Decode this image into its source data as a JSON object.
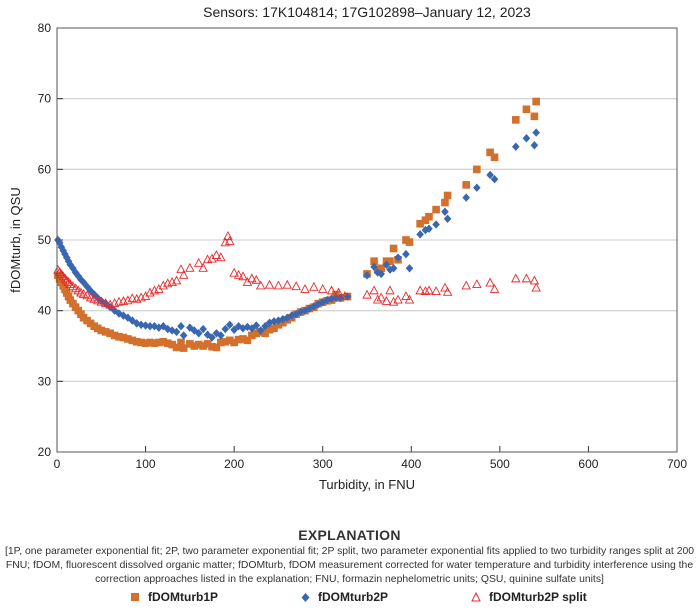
{
  "chart_data": {
    "type": "scatter",
    "title": "Sensors: 17K104814; 17G102898–January 12, 2023",
    "xlabel": "Turbidity, in FNU",
    "ylabel": "fDOMturb, in QSU",
    "xlim": [
      0,
      700
    ],
    "ylim": [
      20,
      80
    ],
    "xticks": [
      "0",
      "100",
      "200",
      "300",
      "400",
      "500",
      "600",
      "700"
    ],
    "yticks": [
      "20",
      "30",
      "40",
      "50",
      "60",
      "70",
      "80"
    ],
    "grid": "horizontal",
    "legend_position": "bottom",
    "series": [
      {
        "name": "fDOMturb1P",
        "marker": "square",
        "color": "#d2702c",
        "points": [
          [
            1,
            45
          ],
          [
            3,
            44.5
          ],
          [
            5,
            44
          ],
          [
            7,
            43.5
          ],
          [
            9,
            43
          ],
          [
            11,
            42.5
          ],
          [
            13,
            42
          ],
          [
            15,
            41.5
          ],
          [
            18,
            41
          ],
          [
            21,
            40.5
          ],
          [
            24,
            40
          ],
          [
            27,
            39.5
          ],
          [
            30,
            39
          ],
          [
            34,
            38.6
          ],
          [
            38,
            38.2
          ],
          [
            42,
            37.8
          ],
          [
            46,
            37.5
          ],
          [
            50,
            37.2
          ],
          [
            55,
            37
          ],
          [
            60,
            36.8
          ],
          [
            65,
            36.5
          ],
          [
            70,
            36.3
          ],
          [
            75,
            36.2
          ],
          [
            80,
            36
          ],
          [
            85,
            35.8
          ],
          [
            90,
            35.6
          ],
          [
            95,
            35.5
          ],
          [
            100,
            35.4
          ],
          [
            105,
            35.5
          ],
          [
            110,
            35.4
          ],
          [
            115,
            35.5
          ],
          [
            120,
            35.6
          ],
          [
            125,
            35.4
          ],
          [
            130,
            35.2
          ],
          [
            135,
            34.8
          ],
          [
            140,
            35.5
          ],
          [
            143,
            34.7
          ],
          [
            150,
            35.3
          ],
          [
            155,
            35
          ],
          [
            160,
            35.2
          ],
          [
            165,
            35
          ],
          [
            170,
            35.3
          ],
          [
            175,
            34.9
          ],
          [
            180,
            34.8
          ],
          [
            185,
            35.5
          ],
          [
            190,
            35.6
          ],
          [
            195,
            35.8
          ],
          [
            200,
            35.5
          ],
          [
            205,
            35.9
          ],
          [
            210,
            36
          ],
          [
            215,
            35.8
          ],
          [
            220,
            36.5
          ],
          [
            225,
            36.8
          ],
          [
            230,
            37
          ],
          [
            235,
            36.8
          ],
          [
            240,
            37.3
          ],
          [
            245,
            37.5
          ],
          [
            250,
            38
          ],
          [
            255,
            38.3
          ],
          [
            260,
            38.7
          ],
          [
            265,
            39
          ],
          [
            270,
            39.5
          ],
          [
            275,
            39.8
          ],
          [
            280,
            40
          ],
          [
            285,
            40.3
          ],
          [
            290,
            40.5
          ],
          [
            295,
            41
          ],
          [
            300,
            41.2
          ],
          [
            305,
            41.4
          ],
          [
            310,
            41.5
          ],
          [
            315,
            42.3
          ],
          [
            320,
            41.8
          ],
          [
            328,
            42
          ],
          [
            350,
            45.2
          ],
          [
            358,
            47
          ],
          [
            362,
            45.8
          ],
          [
            366,
            46
          ],
          [
            372,
            47
          ],
          [
            376,
            47
          ],
          [
            380,
            48.8
          ],
          [
            385,
            47.2
          ],
          [
            394,
            50
          ],
          [
            398,
            49.7
          ],
          [
            410,
            52.3
          ],
          [
            416,
            52.8
          ],
          [
            420,
            53.3
          ],
          [
            428,
            54.3
          ],
          [
            438,
            55.3
          ],
          [
            441,
            56.3
          ],
          [
            462,
            57.8
          ],
          [
            474,
            60
          ],
          [
            489,
            62.4
          ],
          [
            494,
            61.7
          ],
          [
            518,
            67
          ],
          [
            530,
            68.5
          ],
          [
            539,
            67.5
          ],
          [
            541,
            69.6
          ]
        ]
      },
      {
        "name": "fDOMturb2P",
        "marker": "diamond",
        "color": "#3a67b1",
        "points": [
          [
            1,
            50
          ],
          [
            3,
            49.6
          ],
          [
            5,
            49
          ],
          [
            7,
            48.5
          ],
          [
            9,
            48
          ],
          [
            11,
            47.5
          ],
          [
            13,
            47
          ],
          [
            15,
            46.5
          ],
          [
            18,
            46
          ],
          [
            21,
            45.4
          ],
          [
            24,
            44.9
          ],
          [
            27,
            44.4
          ],
          [
            30,
            44
          ],
          [
            34,
            43.4
          ],
          [
            38,
            42.8
          ],
          [
            42,
            42.3
          ],
          [
            46,
            41.8
          ],
          [
            50,
            41.4
          ],
          [
            55,
            41
          ],
          [
            60,
            40.5
          ],
          [
            65,
            40
          ],
          [
            70,
            39.6
          ],
          [
            75,
            39.3
          ],
          [
            80,
            39
          ],
          [
            85,
            38.6
          ],
          [
            90,
            38.2
          ],
          [
            95,
            38
          ],
          [
            100,
            37.9
          ],
          [
            105,
            37.8
          ],
          [
            110,
            37.8
          ],
          [
            115,
            37.6
          ],
          [
            120,
            37.8
          ],
          [
            125,
            37.4
          ],
          [
            130,
            37.2
          ],
          [
            135,
            37
          ],
          [
            140,
            37.8
          ],
          [
            143,
            36.5
          ],
          [
            150,
            37.6
          ],
          [
            155,
            37.2
          ],
          [
            160,
            36.8
          ],
          [
            165,
            37.4
          ],
          [
            170,
            36.6
          ],
          [
            175,
            36.2
          ],
          [
            180,
            36.8
          ],
          [
            185,
            36.5
          ],
          [
            190,
            37.4
          ],
          [
            195,
            38
          ],
          [
            200,
            37.3
          ],
          [
            205,
            37.8
          ],
          [
            210,
            37.5
          ],
          [
            215,
            37.7
          ],
          [
            220,
            37.5
          ],
          [
            225,
            37.9
          ],
          [
            230,
            37.2
          ],
          [
            235,
            37.8
          ],
          [
            240,
            38.3
          ],
          [
            245,
            38.5
          ],
          [
            250,
            38.6
          ],
          [
            255,
            38.8
          ],
          [
            260,
            39
          ],
          [
            265,
            39.3
          ],
          [
            270,
            39.5
          ],
          [
            275,
            39.8
          ],
          [
            280,
            40
          ],
          [
            285,
            40.3
          ],
          [
            290,
            40.6
          ],
          [
            295,
            40.9
          ],
          [
            300,
            41.2
          ],
          [
            305,
            41.5
          ],
          [
            310,
            41.7
          ],
          [
            315,
            41.8
          ],
          [
            320,
            41.8
          ],
          [
            328,
            42
          ],
          [
            350,
            45
          ],
          [
            358,
            46.2
          ],
          [
            362,
            45.4
          ],
          [
            366,
            45.2
          ],
          [
            372,
            46.5
          ],
          [
            376,
            45.8
          ],
          [
            380,
            46
          ],
          [
            385,
            47.5
          ],
          [
            394,
            48
          ],
          [
            398,
            46
          ],
          [
            410,
            50.8
          ],
          [
            416,
            51.4
          ],
          [
            420,
            51.6
          ],
          [
            428,
            52.2
          ],
          [
            438,
            54
          ],
          [
            441,
            53
          ],
          [
            462,
            56
          ],
          [
            474,
            57.4
          ],
          [
            489,
            59.2
          ],
          [
            494,
            58.6
          ],
          [
            518,
            63.2
          ],
          [
            530,
            64.4
          ],
          [
            539,
            63.4
          ],
          [
            541,
            65.2
          ]
        ]
      },
      {
        "name": "fDOMturb2P split",
        "marker": "triangle-open",
        "color": "#e9282c",
        "points": [
          [
            1,
            45.7
          ],
          [
            3,
            45.4
          ],
          [
            5,
            45.1
          ],
          [
            7,
            44.8
          ],
          [
            9,
            44.5
          ],
          [
            11,
            44.2
          ],
          [
            13,
            44
          ],
          [
            15,
            43.7
          ],
          [
            18,
            43.4
          ],
          [
            21,
            43.1
          ],
          [
            24,
            42.8
          ],
          [
            27,
            42.5
          ],
          [
            30,
            42.3
          ],
          [
            34,
            42.1
          ],
          [
            38,
            41.8
          ],
          [
            42,
            41.6
          ],
          [
            46,
            41.4
          ],
          [
            50,
            41.2
          ],
          [
            55,
            41
          ],
          [
            60,
            40.8
          ],
          [
            65,
            41
          ],
          [
            70,
            41.2
          ],
          [
            75,
            41.3
          ],
          [
            80,
            41.4
          ],
          [
            85,
            41.7
          ],
          [
            90,
            41.6
          ],
          [
            95,
            41.8
          ],
          [
            100,
            42
          ],
          [
            105,
            42.5
          ],
          [
            110,
            42.8
          ],
          [
            115,
            43
          ],
          [
            120,
            43.5
          ],
          [
            125,
            43.8
          ],
          [
            130,
            44
          ],
          [
            135,
            44.2
          ],
          [
            140,
            45.8
          ],
          [
            143,
            45
          ],
          [
            150,
            46
          ],
          [
            160,
            46.7
          ],
          [
            165,
            46
          ],
          [
            170,
            47.2
          ],
          [
            175,
            47.3
          ],
          [
            180,
            47.8
          ],
          [
            185,
            47.5
          ],
          [
            190,
            49.6
          ],
          [
            193,
            50.5
          ],
          [
            195,
            49.8
          ],
          [
            200,
            45.3
          ],
          [
            205,
            45
          ],
          [
            210,
            44.8
          ],
          [
            215,
            44
          ],
          [
            220,
            44.5
          ],
          [
            225,
            44.3
          ],
          [
            230,
            43.5
          ],
          [
            240,
            43.6
          ],
          [
            250,
            43.5
          ],
          [
            260,
            43.6
          ],
          [
            270,
            43.4
          ],
          [
            280,
            43
          ],
          [
            290,
            43.3
          ],
          [
            300,
            43
          ],
          [
            310,
            42.8
          ],
          [
            318,
            42.5
          ],
          [
            325,
            42
          ],
          [
            350,
            42.2
          ],
          [
            358,
            42.8
          ],
          [
            362,
            41.5
          ],
          [
            366,
            41.8
          ],
          [
            372,
            41.3
          ],
          [
            376,
            42.8
          ],
          [
            380,
            41.2
          ],
          [
            385,
            41.5
          ],
          [
            394,
            42
          ],
          [
            398,
            41.5
          ],
          [
            410,
            42.8
          ],
          [
            416,
            42.7
          ],
          [
            420,
            42.8
          ],
          [
            428,
            42.7
          ],
          [
            438,
            43.2
          ],
          [
            441,
            42.6
          ],
          [
            462,
            43.5
          ],
          [
            474,
            43.7
          ],
          [
            489,
            43.9
          ],
          [
            494,
            43
          ],
          [
            518,
            44.5
          ],
          [
            530,
            44.5
          ],
          [
            539,
            44.2
          ],
          [
            541,
            43.2
          ]
        ]
      }
    ]
  },
  "explanation": {
    "heading": "EXPLANATION",
    "text": "[1P, one parameter exponential fit; 2P, two parameter exponential fit; 2P split, two parameter exponential fits applied to two turbidity ranges split at 200 FNU; fDOM, fluorescent dissolved organic matter; fDOMturb, fDOM measurement corrected for water temperature and turbidity interference using the correction approaches listed in the explanation; FNU, formazin nephelometric units; QSU, quinine sulfate units]",
    "legend": [
      "fDOMturb1P",
      "fDOMturb2P",
      "fDOMturb2P split"
    ]
  }
}
